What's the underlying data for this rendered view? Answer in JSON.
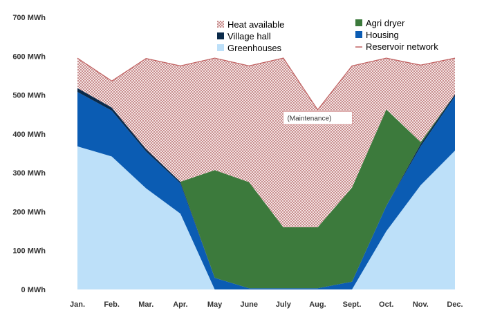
{
  "chart_data": {
    "type": "area",
    "categories": [
      "Jan.",
      "Feb.",
      "Mar.",
      "Apr.",
      "May",
      "June",
      "July",
      "Aug.",
      "Sept.",
      "Oct.",
      "Nov.",
      "Dec."
    ],
    "y_ticks": [
      "0 MWh",
      "100 MWh",
      "200 MWh",
      "300 MWh",
      "400 MWh",
      "500 MWh",
      "600 MWh",
      "700 MWh"
    ],
    "ylim": [
      0,
      700
    ],
    "unit": "MWh",
    "stacked": true,
    "series": [
      {
        "name": "Greenhouses",
        "color": "#bde0f9",
        "values": [
          368,
          342,
          260,
          195,
          0,
          0,
          0,
          0,
          0,
          150,
          268,
          357
        ]
      },
      {
        "name": "Housing",
        "color": "#0b5cb3",
        "values": [
          140,
          118,
          95,
          78,
          30,
          3,
          3,
          3,
          20,
          65,
          100,
          140
        ]
      },
      {
        "name": "Village hall",
        "color": "#0a2a4a",
        "values": [
          10,
          8,
          6,
          4,
          0,
          0,
          0,
          0,
          0,
          0,
          6,
          5
        ]
      },
      {
        "name": "Agri dryer",
        "color": "#3c7a3c",
        "values": [
          0,
          0,
          0,
          0,
          277,
          273,
          157,
          157,
          242,
          248,
          5,
          0
        ]
      },
      {
        "name": "Heat available",
        "color": "#e9c6c6",
        "pattern": "dotted",
        "values": [
          77,
          68,
          233,
          298,
          288,
          299,
          435,
          302,
          313,
          132,
          198,
          93
        ]
      }
    ],
    "line_series": [
      {
        "name": "Reservoir network",
        "color": "#c06060",
        "values": [
          595,
          536,
          594,
          575,
          595,
          575,
          595,
          462,
          575,
          595,
          577,
          595
        ]
      }
    ],
    "legend": {
      "left": [
        "Heat available",
        "Village hall",
        "Greenhouses"
      ],
      "right": [
        "Agri dryer",
        "Housing",
        "Reservoir network"
      ]
    },
    "annotations": [
      {
        "text": "(Maintenance)",
        "month": "Aug.",
        "y": 440
      }
    ]
  }
}
